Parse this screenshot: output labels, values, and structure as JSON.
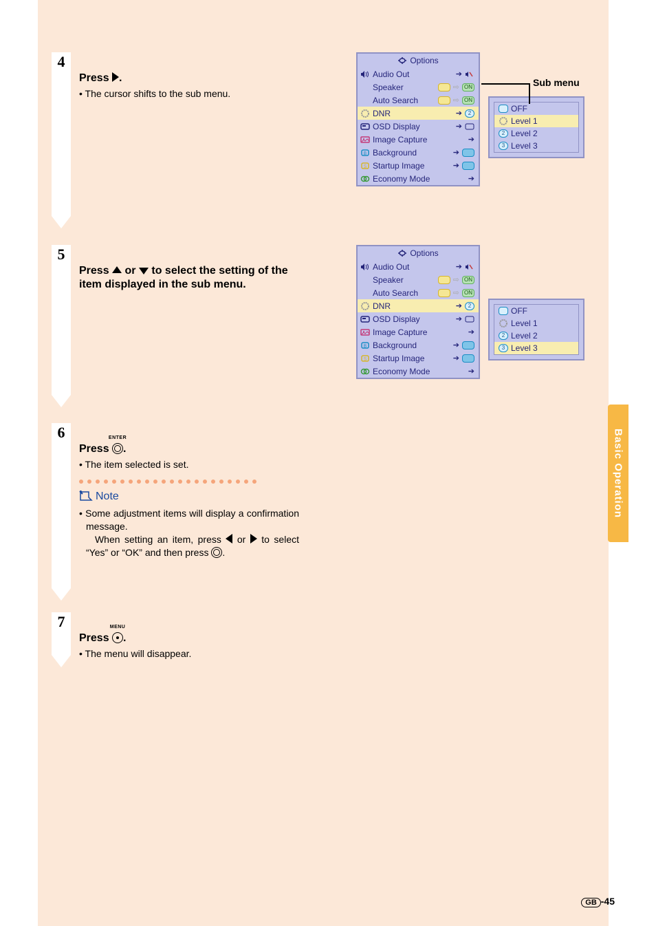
{
  "sideTab": "Basic Operation",
  "pageNumber": "-45",
  "pagePrefix": "GB",
  "steps": {
    "s4": {
      "num": "4",
      "heading_pre": "Press ",
      "heading_post": ".",
      "bullet": "The cursor shifts to the sub menu."
    },
    "s5": {
      "num": "5",
      "heading_pre": "Press ",
      "heading_mid": " or ",
      "heading_post": " to select the set­ting of the item displayed in the sub menu."
    },
    "s6": {
      "num": "6",
      "heading_pre": "Press ",
      "heading_post": ".",
      "btn_sup": "ENTER",
      "bullet": "The item selected is set.",
      "note_label": "Note",
      "note_l1": "Some adjustment items will display a confirmation message.",
      "note_l2a": "When setting an item, press ",
      "note_l2b": " or ",
      "note_l2c": " to select “Yes” or “OK” and then press ",
      "note_l2d": "."
    },
    "s7": {
      "num": "7",
      "heading_pre": "Press ",
      "heading_post": ".",
      "btn_sup": "MENU",
      "bullet": "The menu will disappear."
    }
  },
  "submenuLabel": "Sub menu",
  "osd": {
    "title": "Options",
    "items": [
      {
        "label": "Audio Out",
        "icon": "speaker"
      },
      {
        "label": "Speaker",
        "icon": "none",
        "pill": "yel"
      },
      {
        "label": "Auto Search",
        "icon": "none",
        "pill": "yel"
      },
      {
        "label": "DNR",
        "icon": "dnr",
        "hl": true
      },
      {
        "label": "OSD Display",
        "icon": "osd"
      },
      {
        "label": "Image Capture",
        "icon": "img"
      },
      {
        "label": "Background",
        "icon": "bg"
      },
      {
        "label": "Startup Image",
        "icon": "si"
      },
      {
        "label": "Economy Mode",
        "icon": "eco"
      }
    ]
  },
  "subOptions": [
    {
      "label": "OFF"
    },
    {
      "label": "Level 1"
    },
    {
      "label": "Level 2"
    },
    {
      "label": "Level 3"
    }
  ],
  "colors": {
    "pageBg": "#fce8d8",
    "sideTab": "#f7b845",
    "osdBg": "#c4c6ec",
    "osdBorder": "#9092c4",
    "osdText": "#25257a",
    "highlight": "#f8edb0",
    "noteColor": "#1a4aa0",
    "dotColor": "#f5a57b"
  }
}
